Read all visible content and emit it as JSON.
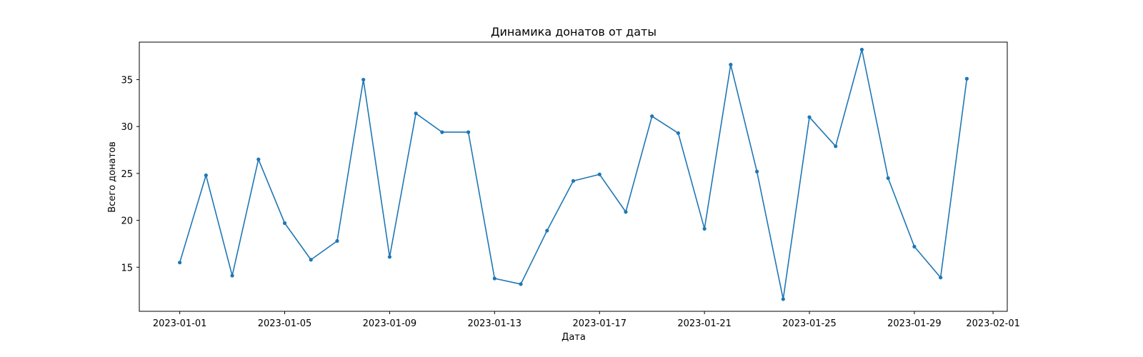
{
  "chart_data": {
    "type": "line",
    "title": "Динамика донатов от даты",
    "xlabel": "Дата",
    "ylabel": "Всего донатов",
    "x": [
      "2023-01-01",
      "2023-01-02",
      "2023-01-03",
      "2023-01-04",
      "2023-01-05",
      "2023-01-06",
      "2023-01-07",
      "2023-01-08",
      "2023-01-09",
      "2023-01-10",
      "2023-01-11",
      "2023-01-12",
      "2023-01-13",
      "2023-01-14",
      "2023-01-15",
      "2023-01-16",
      "2023-01-17",
      "2023-01-18",
      "2023-01-19",
      "2023-01-20",
      "2023-01-21",
      "2023-01-22",
      "2023-01-23",
      "2023-01-24",
      "2023-01-25",
      "2023-01-26",
      "2023-01-27",
      "2023-01-28",
      "2023-01-29",
      "2023-01-30",
      "2023-01-31"
    ],
    "series": [
      {
        "name": "Всего донатов",
        "color": "#1f77b4",
        "values": [
          15.5,
          24.8,
          14.1,
          26.5,
          19.7,
          15.8,
          17.8,
          35.0,
          16.1,
          31.4,
          29.4,
          29.4,
          13.8,
          13.2,
          18.9,
          24.2,
          24.9,
          20.9,
          31.1,
          29.3,
          19.1,
          36.6,
          25.2,
          11.6,
          31.0,
          27.9,
          38.2,
          24.5,
          17.2,
          13.9,
          35.1
        ]
      }
    ],
    "xlim": [
      "2022-12-30T11:00",
      "2023-02-01T13:00"
    ],
    "ylim": [
      10.3,
      39.0
    ],
    "x_ticks": [
      "2023-01-01",
      "2023-01-05",
      "2023-01-09",
      "2023-01-13",
      "2023-01-17",
      "2023-01-21",
      "2023-01-25",
      "2023-01-29",
      "2023-02-01"
    ],
    "y_ticks": [
      15,
      20,
      25,
      30,
      35
    ],
    "grid": false,
    "legend": "none"
  }
}
